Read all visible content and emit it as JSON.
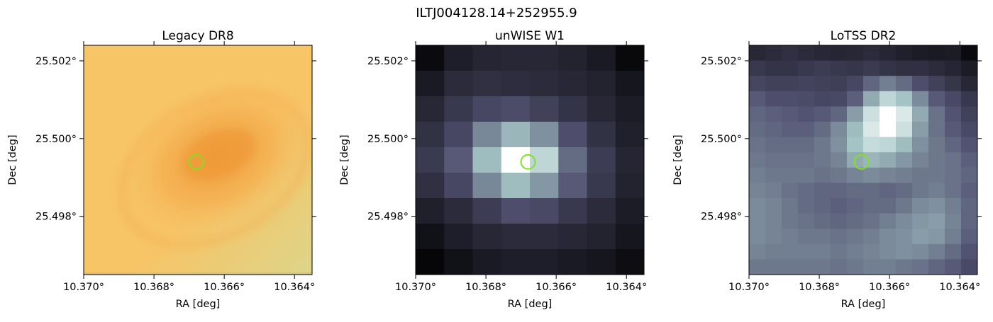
{
  "figure": {
    "suptitle": "ILTJ004128.14+252955.9"
  },
  "chart_data": [
    {
      "type": "heatmap",
      "title": "Legacy DR8",
      "xlabel": "RA [deg]",
      "ylabel": "Dec [deg]",
      "xlim": [
        10.37,
        10.3635
      ],
      "ylim": [
        25.4965,
        25.5024
      ],
      "xticks": [
        10.37,
        10.368,
        10.366,
        10.364
      ],
      "xtick_labels": [
        "10.370°",
        "10.368°",
        "10.366°",
        "10.364°"
      ],
      "yticks": [
        25.498,
        25.5,
        25.502
      ],
      "ytick_labels": [
        "25.498°",
        "25.500°",
        "25.502°"
      ],
      "marker": {
        "shape": "circle",
        "ra": 10.3668,
        "dec": 25.4994,
        "color": "#7fe31f"
      },
      "image": {
        "kind": "smooth-color",
        "colors": {
          "base": "#f7c466",
          "core": "#ef9a38",
          "ring": "#f4b052",
          "corner": "#dcd58a",
          "cutout_low_edge": "#c2b98a"
        }
      }
    },
    {
      "type": "heatmap",
      "title": "unWISE W1",
      "xlabel": "RA [deg]",
      "ylabel": "Dec [deg]",
      "xlim": [
        10.37,
        10.3635
      ],
      "ylim": [
        25.4965,
        25.5024
      ],
      "xticks": [
        10.37,
        10.368,
        10.366,
        10.364
      ],
      "xtick_labels": [
        "10.370°",
        "10.368°",
        "10.366°",
        "10.364°"
      ],
      "yticks": [
        25.498,
        25.5,
        25.502
      ],
      "ytick_labels": [
        "25.498°",
        "25.500°",
        "25.502°"
      ],
      "marker": {
        "shape": "circle",
        "ra": 10.3668,
        "dec": 25.4994,
        "color": "#7fe31f"
      },
      "colormap": "bone",
      "grid": [
        [
          0.05,
          0.14,
          0.17,
          0.18,
          0.18,
          0.16,
          0.12,
          0.04
        ],
        [
          0.12,
          0.2,
          0.22,
          0.21,
          0.2,
          0.18,
          0.16,
          0.1
        ],
        [
          0.18,
          0.26,
          0.33,
          0.35,
          0.3,
          0.24,
          0.18,
          0.13
        ],
        [
          0.23,
          0.33,
          0.55,
          0.7,
          0.58,
          0.36,
          0.23,
          0.15
        ],
        [
          0.27,
          0.4,
          0.72,
          1.0,
          0.82,
          0.46,
          0.28,
          0.17
        ],
        [
          0.22,
          0.33,
          0.55,
          0.72,
          0.6,
          0.4,
          0.26,
          0.16
        ],
        [
          0.15,
          0.2,
          0.28,
          0.36,
          0.34,
          0.26,
          0.2,
          0.13
        ],
        [
          0.08,
          0.14,
          0.18,
          0.2,
          0.2,
          0.18,
          0.16,
          0.1
        ],
        [
          0.03,
          0.08,
          0.12,
          0.14,
          0.14,
          0.12,
          0.1,
          0.06
        ]
      ]
    },
    {
      "type": "heatmap",
      "title": "LoTSS DR2",
      "xlabel": "RA [deg]",
      "ylabel": "Dec [deg]",
      "xlim": [
        10.37,
        10.3635
      ],
      "ylim": [
        25.4965,
        25.5024
      ],
      "xticks": [
        10.37,
        10.368,
        10.366,
        10.364
      ],
      "xtick_labels": [
        "10.370°",
        "10.368°",
        "10.366°",
        "10.364°"
      ],
      "yticks": [
        25.498,
        25.5,
        25.502
      ],
      "ytick_labels": [
        "25.498°",
        "25.500°",
        "25.502°"
      ],
      "marker": {
        "shape": "circle",
        "ra": 10.3668,
        "dec": 25.4994,
        "color": "#7fe31f"
      },
      "colormap": "bone",
      "grid": [
        [
          0.18,
          0.2,
          0.22,
          0.2,
          0.18,
          0.17,
          0.18,
          0.2,
          0.17,
          0.15,
          0.13,
          0.12,
          0.13,
          0.05
        ],
        [
          0.26,
          0.24,
          0.24,
          0.26,
          0.28,
          0.26,
          0.25,
          0.27,
          0.24,
          0.22,
          0.22,
          0.2,
          0.17,
          0.13
        ],
        [
          0.32,
          0.3,
          0.3,
          0.31,
          0.3,
          0.29,
          0.33,
          0.44,
          0.52,
          0.46,
          0.36,
          0.3,
          0.25,
          0.18
        ],
        [
          0.4,
          0.36,
          0.36,
          0.35,
          0.33,
          0.34,
          0.42,
          0.66,
          0.82,
          0.74,
          0.56,
          0.4,
          0.34,
          0.26
        ],
        [
          0.44,
          0.42,
          0.4,
          0.38,
          0.4,
          0.44,
          0.62,
          0.86,
          1.0,
          0.9,
          0.66,
          0.48,
          0.38,
          0.3
        ],
        [
          0.46,
          0.44,
          0.42,
          0.42,
          0.46,
          0.56,
          0.72,
          0.9,
          1.0,
          0.86,
          0.62,
          0.48,
          0.4,
          0.34
        ],
        [
          0.48,
          0.46,
          0.46,
          0.46,
          0.5,
          0.58,
          0.74,
          0.84,
          0.82,
          0.72,
          0.58,
          0.5,
          0.44,
          0.38
        ],
        [
          0.5,
          0.48,
          0.48,
          0.48,
          0.5,
          0.54,
          0.66,
          0.7,
          0.66,
          0.6,
          0.54,
          0.5,
          0.48,
          0.42
        ],
        [
          0.52,
          0.5,
          0.5,
          0.5,
          0.48,
          0.5,
          0.54,
          0.56,
          0.54,
          0.52,
          0.5,
          0.5,
          0.48,
          0.44
        ],
        [
          0.54,
          0.52,
          0.48,
          0.46,
          0.44,
          0.44,
          0.46,
          0.46,
          0.44,
          0.46,
          0.5,
          0.52,
          0.48,
          0.42
        ],
        [
          0.56,
          0.54,
          0.5,
          0.46,
          0.44,
          0.42,
          0.44,
          0.46,
          0.46,
          0.5,
          0.56,
          0.58,
          0.52,
          0.44
        ],
        [
          0.56,
          0.54,
          0.5,
          0.48,
          0.46,
          0.44,
          0.46,
          0.48,
          0.52,
          0.56,
          0.6,
          0.62,
          0.54,
          0.44
        ],
        [
          0.56,
          0.54,
          0.52,
          0.5,
          0.5,
          0.48,
          0.5,
          0.52,
          0.56,
          0.58,
          0.62,
          0.6,
          0.52,
          0.42
        ],
        [
          0.54,
          0.52,
          0.52,
          0.52,
          0.52,
          0.5,
          0.52,
          0.54,
          0.56,
          0.58,
          0.56,
          0.52,
          0.46,
          0.38
        ],
        [
          0.5,
          0.5,
          0.5,
          0.5,
          0.5,
          0.48,
          0.5,
          0.52,
          0.52,
          0.5,
          0.48,
          0.44,
          0.4,
          0.34
        ]
      ]
    }
  ]
}
